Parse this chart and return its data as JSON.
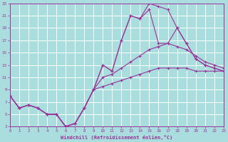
{
  "xlabel": "Windchill (Refroidissement éolien,°C)",
  "bg_color": "#aadddd",
  "grid_color": "#ffffff",
  "line_color": "#993399",
  "xmin": 0,
  "xmax": 23,
  "ymin": 3,
  "ymax": 23,
  "line1_x": [
    0,
    1,
    2,
    3,
    4,
    5,
    6,
    7,
    8,
    9,
    10,
    11,
    12,
    13,
    14,
    15,
    16,
    17,
    18,
    19,
    20,
    21,
    22,
    23
  ],
  "line1_y": [
    8.0,
    6.0,
    6.5,
    6.0,
    5.0,
    5.0,
    3.0,
    3.5,
    6.0,
    9.0,
    13.0,
    12.0,
    17.0,
    21.0,
    20.5,
    23.0,
    22.5,
    22.0,
    19.0,
    16.5,
    14.0,
    13.0,
    12.5,
    12.0
  ],
  "line2_x": [
    0,
    1,
    2,
    3,
    4,
    5,
    6,
    7,
    8,
    9,
    10,
    11,
    12,
    13,
    14,
    15,
    16,
    17,
    18,
    19,
    20,
    21,
    22,
    23
  ],
  "line2_y": [
    8.0,
    6.0,
    6.5,
    6.0,
    5.0,
    5.0,
    3.0,
    3.5,
    6.0,
    9.0,
    13.0,
    12.0,
    17.0,
    21.0,
    20.5,
    22.0,
    16.5,
    16.5,
    19.0,
    16.5,
    14.0,
    13.0,
    12.5,
    12.0
  ],
  "line3_x": [
    0,
    1,
    2,
    3,
    4,
    5,
    6,
    7,
    8,
    9,
    10,
    11,
    12,
    13,
    14,
    15,
    16,
    17,
    18,
    19,
    20,
    21,
    22,
    23
  ],
  "line3_y": [
    8.0,
    6.0,
    6.5,
    6.0,
    5.0,
    5.0,
    3.0,
    3.5,
    6.0,
    9.0,
    11.0,
    11.5,
    12.5,
    13.5,
    14.5,
    15.5,
    16.0,
    16.5,
    16.0,
    15.5,
    14.5,
    13.5,
    13.0,
    12.5
  ],
  "line4_x": [
    0,
    1,
    2,
    3,
    4,
    5,
    6,
    7,
    8,
    9,
    10,
    11,
    12,
    13,
    14,
    15,
    16,
    17,
    18,
    19,
    20,
    21,
    22,
    23
  ],
  "line4_y": [
    8.0,
    6.0,
    6.5,
    6.0,
    5.0,
    5.0,
    3.0,
    3.5,
    6.0,
    9.0,
    9.5,
    10.0,
    10.5,
    11.0,
    11.5,
    12.0,
    12.5,
    12.5,
    12.5,
    12.5,
    12.0,
    12.0,
    12.0,
    12.0
  ],
  "yticks": [
    3,
    5,
    7,
    9,
    11,
    13,
    15,
    17,
    19,
    21,
    23
  ],
  "xticks": [
    0,
    1,
    2,
    3,
    4,
    5,
    6,
    7,
    8,
    9,
    10,
    11,
    12,
    13,
    14,
    15,
    16,
    17,
    18,
    19,
    20,
    21,
    22,
    23
  ]
}
